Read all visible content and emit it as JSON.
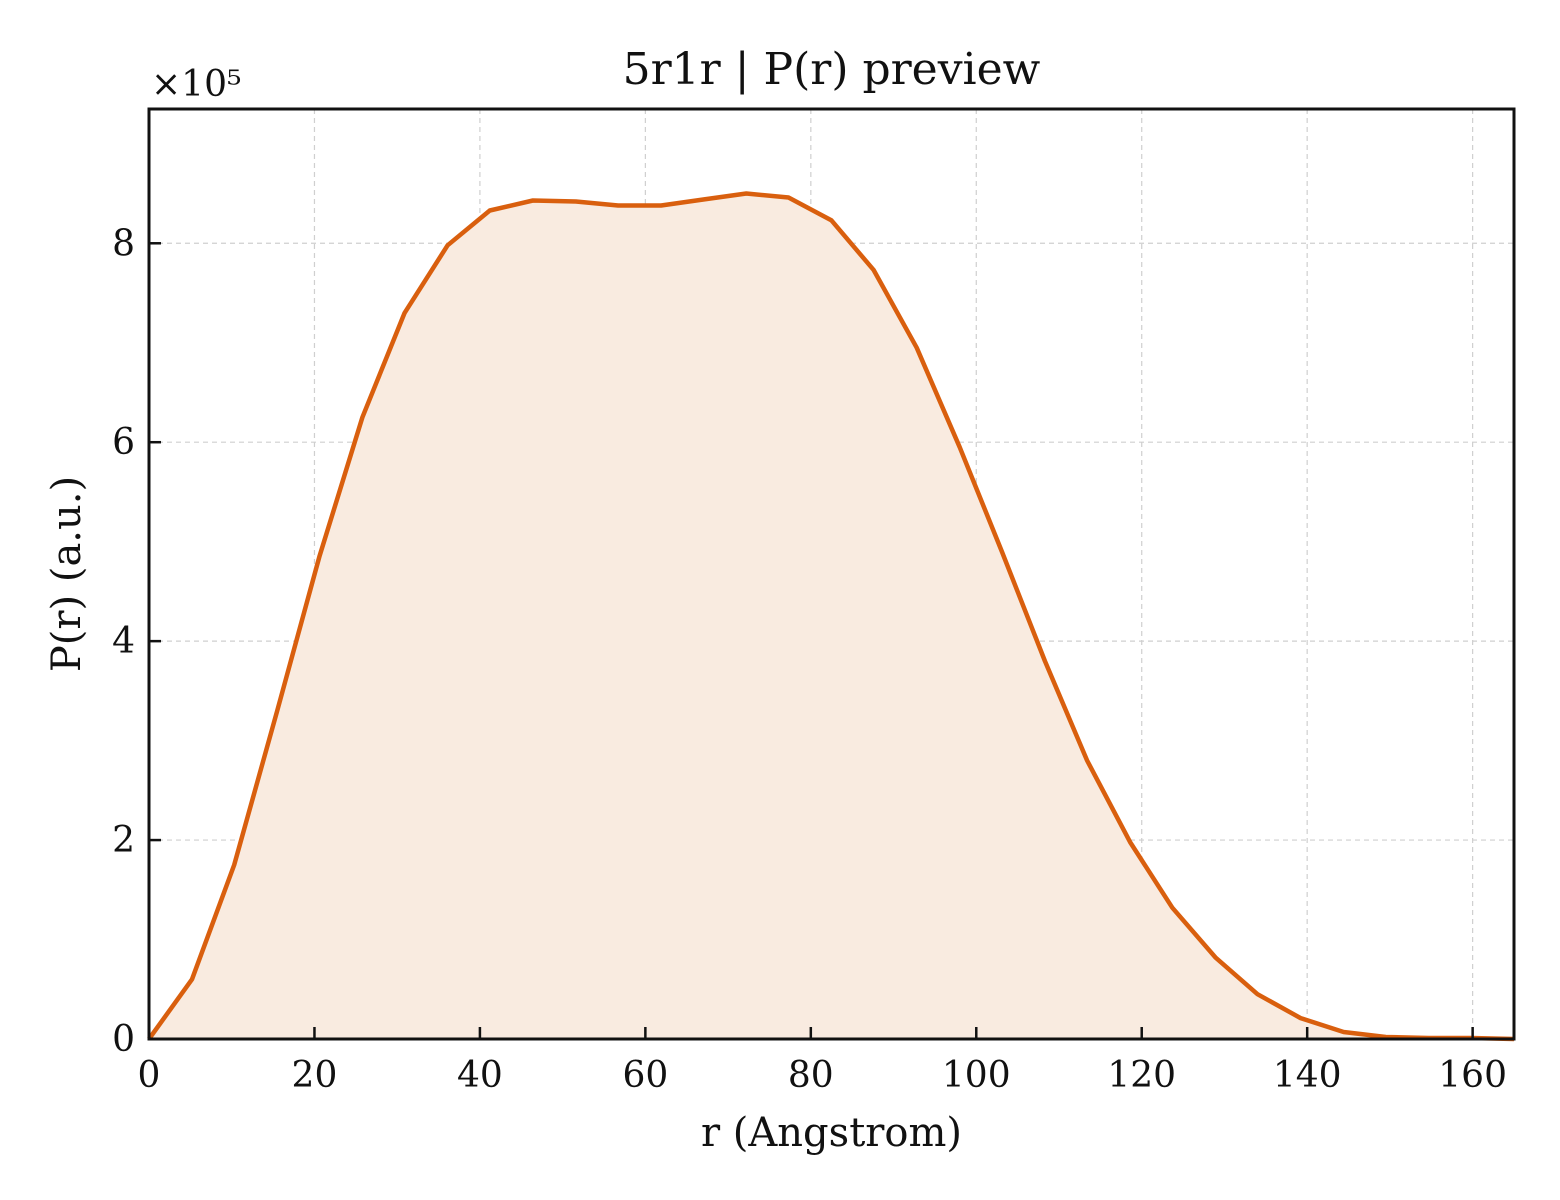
{
  "chart_data": {
    "type": "area",
    "title": "5r1r | P(r) preview",
    "xlabel": "r (Angstrom)",
    "ylabel": "P(r) (a.u.)",
    "y_multiplier_label": "×10⁵",
    "y_scale_factor": 100000,
    "xlim": [
      0,
      165
    ],
    "ylim": [
      0,
      9.35
    ],
    "x_ticks": [
      0,
      20,
      40,
      60,
      80,
      100,
      120,
      140,
      160
    ],
    "y_ticks": [
      0,
      2,
      4,
      6,
      8
    ],
    "grid": true,
    "line_color": "#d95f0e",
    "fill_color": "#f9ebe0",
    "series": [
      {
        "x": [
          0,
          5.2,
          10.3,
          15.5,
          20.6,
          25.8,
          30.9,
          36.1,
          41.2,
          46.4,
          51.6,
          56.7,
          61.9,
          67.0,
          72.2,
          77.3,
          82.5,
          87.6,
          92.8,
          98.0,
          103.1,
          108.3,
          113.4,
          118.6,
          123.7,
          128.9,
          134.0,
          139.2,
          144.4,
          149.5,
          154.7,
          159.8,
          165.0
        ],
        "y": [
          0.0,
          0.6,
          1.75,
          3.3,
          4.85,
          6.25,
          7.3,
          7.98,
          8.33,
          8.43,
          8.42,
          8.38,
          8.38,
          8.44,
          8.5,
          8.46,
          8.23,
          7.73,
          6.95,
          5.95,
          4.9,
          3.8,
          2.8,
          1.98,
          1.32,
          0.82,
          0.45,
          0.21,
          0.07,
          0.02,
          0.01,
          0.01,
          0.0
        ]
      }
    ]
  }
}
